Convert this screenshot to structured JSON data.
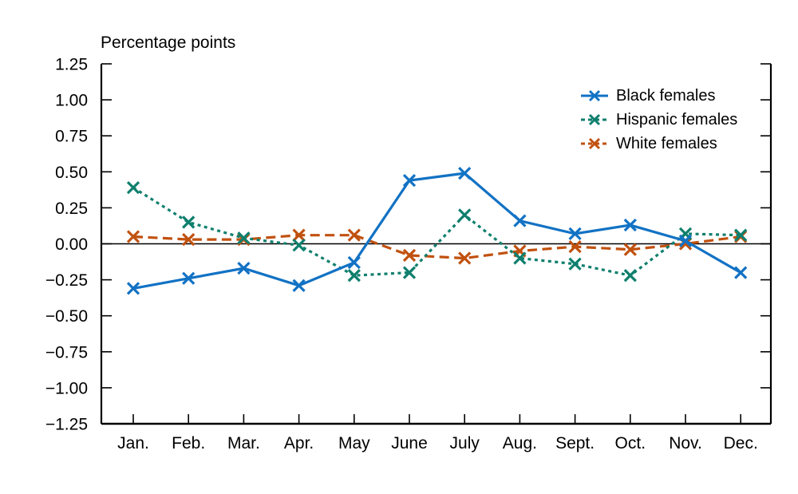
{
  "chart_data": {
    "type": "line",
    "title": "Percentage points",
    "x_categories": [
      "Jan.",
      "Feb.",
      "Mar.",
      "Apr.",
      "May",
      "June",
      "July",
      "Aug.",
      "Sept.",
      "Oct.",
      "Nov.",
      "Dec."
    ],
    "ylim": [
      -1.25,
      1.25
    ],
    "ytick_step": 0.25,
    "ytick_labels": [
      "1.25",
      "1.00",
      "0.75",
      "0.50",
      "0.25",
      "0.00",
      "−0.25",
      "−0.50",
      "−0.75",
      "−1.00",
      "−1.25"
    ],
    "zero_line": true,
    "grid": "off",
    "legend_position": "inside-top-right",
    "marker": "x",
    "axis_color": "#000000",
    "series": [
      {
        "name": "Black females",
        "color": "#1272c4",
        "line_style": "solid",
        "values": [
          -0.31,
          -0.24,
          -0.17,
          -0.29,
          -0.13,
          0.44,
          0.49,
          0.16,
          0.07,
          0.13,
          0.02,
          -0.2
        ]
      },
      {
        "name": "Hispanic females",
        "color": "#0f7f6d",
        "line_style": "dotted",
        "values": [
          0.39,
          0.15,
          0.04,
          -0.01,
          -0.22,
          -0.2,
          0.2,
          -0.1,
          -0.14,
          -0.22,
          0.07,
          0.06
        ]
      },
      {
        "name": "White females",
        "color": "#c1510f",
        "line_style": "dashed",
        "values": [
          0.05,
          0.03,
          0.03,
          0.06,
          0.06,
          -0.08,
          -0.1,
          -0.05,
          -0.02,
          -0.04,
          0.0,
          0.05
        ]
      }
    ]
  }
}
